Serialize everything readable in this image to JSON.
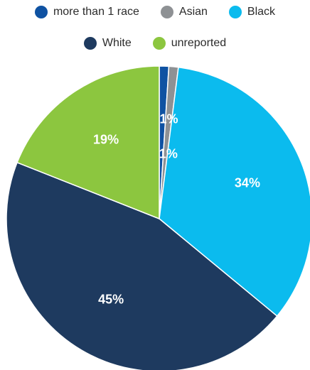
{
  "chart_data": {
    "type": "pie",
    "title": "",
    "legend_position": "top",
    "slices": [
      {
        "label": "more than 1 race",
        "value": 1,
        "display": "1%",
        "color": "#0f52a2"
      },
      {
        "label": "Asian",
        "value": 1,
        "display": "1%",
        "color": "#8e9194"
      },
      {
        "label": "Black",
        "value": 34,
        "display": "34%",
        "color": "#0bbbee"
      },
      {
        "label": "White",
        "value": 45,
        "display": "45%",
        "color": "#1e3a5f"
      },
      {
        "label": "unreported",
        "value": 19,
        "display": "19%",
        "color": "#8cc63f"
      }
    ]
  }
}
